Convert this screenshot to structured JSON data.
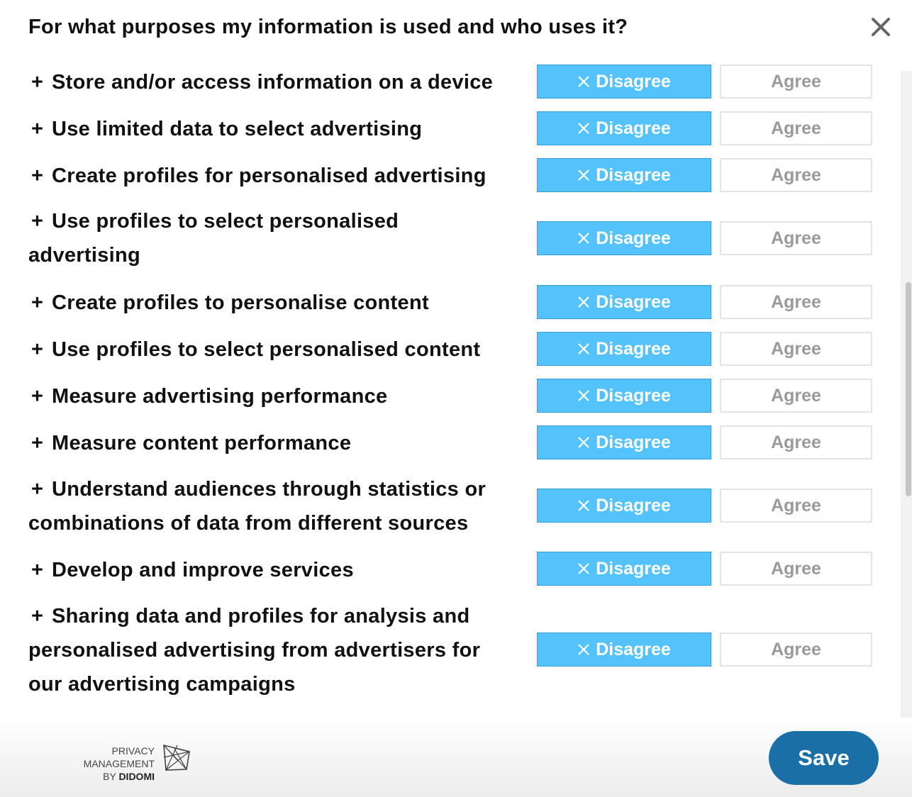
{
  "header": {
    "title": "For what purposes my information is used and who uses it?",
    "close_icon": "close-icon"
  },
  "purposes": [
    {
      "label": "Store and/or access information on a device"
    },
    {
      "label": "Use limited data to select advertising"
    },
    {
      "label": "Create profiles for personalised advertising"
    },
    {
      "label": "Use profiles to select personalised advertising"
    },
    {
      "label": "Create profiles to personalise content"
    },
    {
      "label": "Use profiles to select personalised content"
    },
    {
      "label": "Measure advertising performance"
    },
    {
      "label": "Measure content performance"
    },
    {
      "label": "Understand audiences through statistics or combinations of data from different sources"
    },
    {
      "label": "Develop and improve services"
    },
    {
      "label": "Sharing data and profiles for analysis and personalised advertising from advertisers for our advertising campaigns"
    }
  ],
  "buttons": {
    "expand_symbol": "+",
    "disagree_label": "Disagree",
    "agree_label": "Agree"
  },
  "footer": {
    "brand_line1": "PRIVACY MANAGEMENT",
    "brand_by": "BY",
    "brand_name": "DIDOMI",
    "save_label": "Save"
  },
  "colors": {
    "disagree_bg": "#55c3fb",
    "save_bg": "#1a6fa6",
    "agree_text": "#9a9a9a"
  }
}
